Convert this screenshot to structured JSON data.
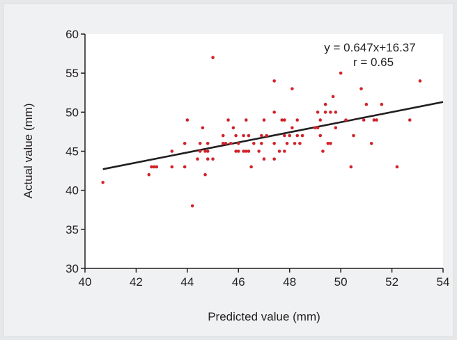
{
  "colors": {
    "page_background": "#f0f1f2",
    "plot_background": "#ffffff",
    "point_color": "#d2232a",
    "line_color": "#231f20",
    "axis_color": "#231f20"
  },
  "chart_data": {
    "type": "scatter",
    "title": "",
    "xlabel": "Predicted value (mm)",
    "ylabel": "Actual value (mm)",
    "xlim": [
      40,
      54
    ],
    "ylim": [
      30,
      60
    ],
    "xticks": [
      40,
      42,
      44,
      46,
      48,
      50,
      52,
      54
    ],
    "yticks": [
      30,
      35,
      40,
      45,
      50,
      55,
      60
    ],
    "grid": false,
    "legend": "none",
    "annotations": [
      "y = 0.647x+16.37",
      "r = 0.65"
    ],
    "regression": {
      "slope": 0.647,
      "intercept": 16.37,
      "x_start": 40.7,
      "x_end": 54
    },
    "points": [
      [
        40.7,
        41
      ],
      [
        42.5,
        42
      ],
      [
        42.6,
        43
      ],
      [
        42.7,
        43
      ],
      [
        42.8,
        43
      ],
      [
        43.4,
        45
      ],
      [
        43.4,
        43
      ],
      [
        43.9,
        43
      ],
      [
        43.9,
        46
      ],
      [
        44.0,
        49
      ],
      [
        44.2,
        38
      ],
      [
        44.4,
        44
      ],
      [
        44.5,
        46
      ],
      [
        44.5,
        45
      ],
      [
        44.6,
        48
      ],
      [
        44.7,
        45
      ],
      [
        44.8,
        46
      ],
      [
        44.8,
        45
      ],
      [
        44.8,
        44
      ],
      [
        44.7,
        42
      ],
      [
        45.0,
        57
      ],
      [
        45.0,
        44
      ],
      [
        45.4,
        46
      ],
      [
        45.4,
        47
      ],
      [
        45.5,
        46
      ],
      [
        45.6,
        49
      ],
      [
        45.7,
        46
      ],
      [
        45.8,
        48
      ],
      [
        45.9,
        45
      ],
      [
        45.9,
        47
      ],
      [
        46.0,
        46
      ],
      [
        46.0,
        45
      ],
      [
        46.2,
        47
      ],
      [
        46.2,
        45
      ],
      [
        46.3,
        49
      ],
      [
        46.3,
        45
      ],
      [
        46.4,
        47
      ],
      [
        46.4,
        45
      ],
      [
        46.5,
        43
      ],
      [
        46.6,
        46
      ],
      [
        46.8,
        45
      ],
      [
        46.9,
        47
      ],
      [
        46.9,
        46
      ],
      [
        47.0,
        49
      ],
      [
        47.0,
        44
      ],
      [
        47.1,
        47
      ],
      [
        47.4,
        44
      ],
      [
        47.4,
        46
      ],
      [
        47.4,
        50
      ],
      [
        47.4,
        54
      ],
      [
        47.6,
        45
      ],
      [
        47.7,
        49
      ],
      [
        47.8,
        45
      ],
      [
        47.8,
        49
      ],
      [
        47.8,
        47
      ],
      [
        47.9,
        46
      ],
      [
        48.0,
        47
      ],
      [
        48.1,
        48
      ],
      [
        48.1,
        53
      ],
      [
        48.2,
        46
      ],
      [
        48.3,
        49
      ],
      [
        48.3,
        47
      ],
      [
        48.4,
        46
      ],
      [
        48.5,
        47
      ],
      [
        49.0,
        48
      ],
      [
        49.1,
        50
      ],
      [
        49.1,
        48
      ],
      [
        49.2,
        49
      ],
      [
        49.2,
        47
      ],
      [
        49.3,
        45
      ],
      [
        49.4,
        51
      ],
      [
        49.4,
        50
      ],
      [
        49.5,
        46
      ],
      [
        49.6,
        50
      ],
      [
        49.6,
        46
      ],
      [
        49.7,
        52
      ],
      [
        49.8,
        48
      ],
      [
        49.8,
        50
      ],
      [
        50.0,
        55
      ],
      [
        50.2,
        49
      ],
      [
        50.4,
        43
      ],
      [
        50.5,
        47
      ],
      [
        50.8,
        53
      ],
      [
        50.9,
        49
      ],
      [
        51.0,
        51
      ],
      [
        51.2,
        46
      ],
      [
        51.3,
        49
      ],
      [
        51.4,
        49
      ],
      [
        51.6,
        51
      ],
      [
        52.2,
        43
      ],
      [
        52.7,
        49
      ],
      [
        53.1,
        54
      ]
    ]
  }
}
